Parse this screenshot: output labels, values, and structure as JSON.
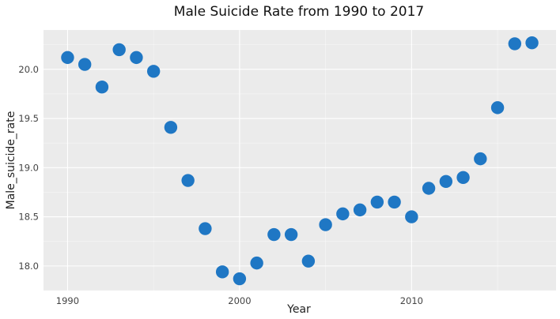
{
  "chart_data": {
    "type": "scatter",
    "title": "Male Suicide Rate from 1990 to 2017",
    "xlabel": "Year",
    "ylabel": "Male_suicide_rate",
    "xlim": [
      1988.6,
      2018.4
    ],
    "ylim": [
      17.75,
      20.4
    ],
    "x_ticks": [
      1990,
      2000,
      2010
    ],
    "y_ticks": [
      18.0,
      18.5,
      19.0,
      19.5,
      20.0
    ],
    "x_tick_labels": [
      "1990",
      "2000",
      "2010"
    ],
    "y_tick_labels": [
      "18.0",
      "18.5",
      "19.0",
      "19.5",
      "20.0"
    ],
    "grid": true,
    "colors": {
      "marker": "#1f77c4",
      "panel": "#ebebeb",
      "grid": "#ffffff"
    },
    "series": [
      {
        "points": [
          {
            "x": 1990,
            "y": 20.12
          },
          {
            "x": 1991,
            "y": 20.05
          },
          {
            "x": 1992,
            "y": 19.82
          },
          {
            "x": 1993,
            "y": 20.2
          },
          {
            "x": 1994,
            "y": 20.12
          },
          {
            "x": 1995,
            "y": 19.98
          },
          {
            "x": 1996,
            "y": 19.41
          },
          {
            "x": 1997,
            "y": 18.87
          },
          {
            "x": 1998,
            "y": 18.38
          },
          {
            "x": 1999,
            "y": 17.94
          },
          {
            "x": 2000,
            "y": 17.87
          },
          {
            "x": 2001,
            "y": 18.03
          },
          {
            "x": 2002,
            "y": 18.32
          },
          {
            "x": 2003,
            "y": 18.32
          },
          {
            "x": 2004,
            "y": 18.05
          },
          {
            "x": 2005,
            "y": 18.42
          },
          {
            "x": 2006,
            "y": 18.53
          },
          {
            "x": 2007,
            "y": 18.57
          },
          {
            "x": 2008,
            "y": 18.65
          },
          {
            "x": 2009,
            "y": 18.65
          },
          {
            "x": 2010,
            "y": 18.5
          },
          {
            "x": 2011,
            "y": 18.79
          },
          {
            "x": 2012,
            "y": 18.86
          },
          {
            "x": 2013,
            "y": 18.9
          },
          {
            "x": 2014,
            "y": 19.09
          },
          {
            "x": 2015,
            "y": 19.61
          },
          {
            "x": 2016,
            "y": 20.26
          },
          {
            "x": 2017,
            "y": 20.27
          }
        ]
      }
    ]
  }
}
